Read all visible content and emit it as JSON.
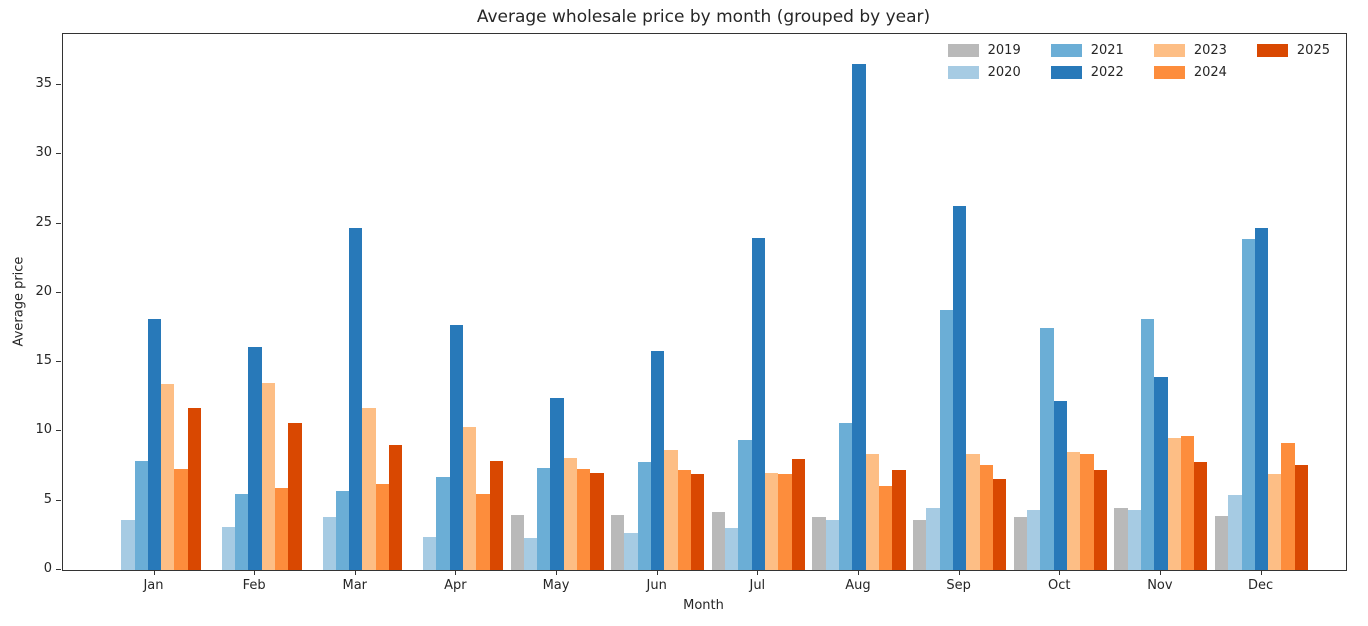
{
  "title": "Average wholesale price by month (grouped by year)",
  "xlabel": "Month",
  "ylabel": "Average price",
  "chart_data": {
    "type": "bar",
    "title": "Average wholesale price by month (grouped by year)",
    "xlabel": "Month",
    "ylabel": "Average price",
    "categories": [
      "Jan",
      "Feb",
      "Mar",
      "Apr",
      "May",
      "Jun",
      "Jul",
      "Aug",
      "Sep",
      "Oct",
      "Nov",
      "Dec"
    ],
    "series": [
      {
        "name": "2019",
        "color": "#b9b9b9",
        "values": [
          null,
          null,
          null,
          null,
          4.0,
          4.0,
          4.2,
          3.8,
          3.6,
          3.8,
          4.5,
          3.9
        ]
      },
      {
        "name": "2020",
        "color": "#a6cbe3",
        "values": [
          3.6,
          3.1,
          3.8,
          2.4,
          2.3,
          2.7,
          3.0,
          3.6,
          4.5,
          4.3,
          4.3,
          5.4
        ]
      },
      {
        "name": "2021",
        "color": "#6baed6",
        "values": [
          7.9,
          5.5,
          5.7,
          6.7,
          7.4,
          7.8,
          9.4,
          10.6,
          18.8,
          17.5,
          18.1,
          23.9
        ]
      },
      {
        "name": "2022",
        "color": "#2879b9",
        "values": [
          18.1,
          16.1,
          24.7,
          17.7,
          12.4,
          15.8,
          24.0,
          36.5,
          26.3,
          12.2,
          13.9,
          24.7
        ]
      },
      {
        "name": "2023",
        "color": "#fdbe85",
        "values": [
          13.4,
          13.5,
          11.7,
          10.3,
          8.1,
          8.7,
          7.0,
          8.4,
          8.4,
          8.5,
          9.5,
          6.9
        ]
      },
      {
        "name": "2024",
        "color": "#fd8d3c",
        "values": [
          7.3,
          5.9,
          6.2,
          5.5,
          7.3,
          7.2,
          6.9,
          6.1,
          7.6,
          8.4,
          9.7,
          9.2
        ]
      },
      {
        "name": "2025",
        "color": "#d94801",
        "values": [
          11.7,
          10.6,
          9.0,
          7.9,
          7.0,
          6.9,
          8.0,
          7.2,
          6.6,
          7.2,
          7.8,
          7.6
        ]
      }
    ],
    "yticks": [
      0,
      5,
      10,
      15,
      20,
      25,
      30,
      35
    ],
    "ylim": [
      0,
      38.7
    ],
    "legend_position": "upper right",
    "legend_columns": [
      [
        "2019",
        "2020"
      ],
      [
        "2021",
        "2022"
      ],
      [
        "2023",
        "2024"
      ],
      [
        "2025"
      ]
    ],
    "grid": false
  }
}
